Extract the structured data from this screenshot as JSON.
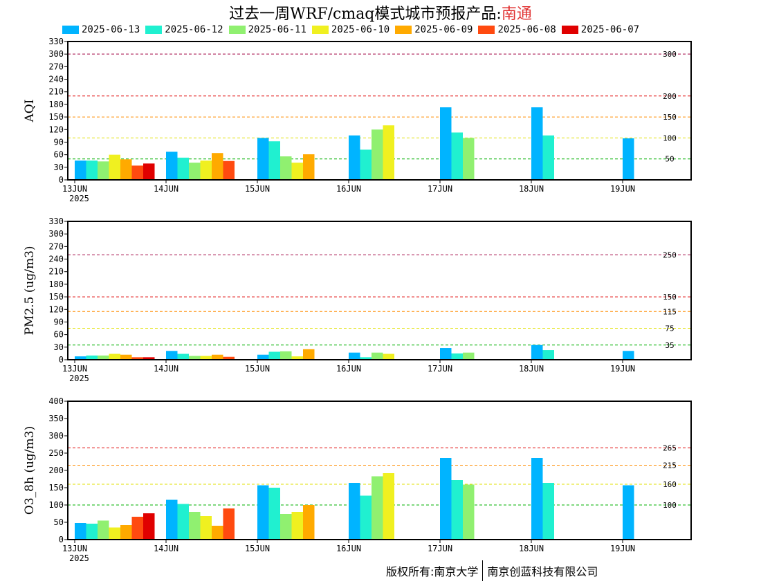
{
  "title": {
    "prefix": "过去一周WRF/cmaq模式城市预报产品:",
    "city": "南通"
  },
  "legend": [
    {
      "label": "2025-06-13",
      "color": "#00b4ff"
    },
    {
      "label": "2025-06-12",
      "color": "#20f0d0"
    },
    {
      "label": "2025-06-11",
      "color": "#90f070"
    },
    {
      "label": "2025-06-10",
      "color": "#f0f020"
    },
    {
      "label": "2025-06-09",
      "color": "#ffaa00"
    },
    {
      "label": "2025-06-08",
      "color": "#ff4a10"
    },
    {
      "label": "2025-06-07",
      "color": "#e00000"
    }
  ],
  "copyright": {
    "left": "版权所有:南京大学",
    "right": "南京创蓝科技有限公司"
  },
  "chart_data": [
    {
      "type": "bar",
      "ylabel": "AQI",
      "ylim": [
        0,
        330
      ],
      "yticks": [
        0,
        30,
        60,
        90,
        120,
        150,
        180,
        210,
        240,
        270,
        300,
        330
      ],
      "categories": [
        "13JUN",
        "14JUN",
        "15JUN",
        "16JUN",
        "17JUN",
        "18JUN",
        "19JUN"
      ],
      "year_label": "2025",
      "thresholds": [
        {
          "value": 50,
          "label": "50",
          "color": "#00b000"
        },
        {
          "value": 100,
          "label": "100",
          "color": "#e0e000"
        },
        {
          "value": 150,
          "label": "150",
          "color": "#ff8c00"
        },
        {
          "value": 200,
          "label": "200",
          "color": "#e00000"
        },
        {
          "value": 300,
          "label": "300",
          "color": "#a00040"
        }
      ],
      "series": [
        {
          "name": "2025-06-13",
          "values": [
            46,
            67,
            100,
            106,
            173,
            173,
            99
          ]
        },
        {
          "name": "2025-06-12",
          "values": [
            46,
            53,
            92,
            72,
            113,
            106,
            null
          ]
        },
        {
          "name": "2025-06-11",
          "values": [
            44,
            41,
            56,
            120,
            100,
            null,
            null
          ]
        },
        {
          "name": "2025-06-10",
          "values": [
            60,
            46,
            41,
            130,
            null,
            null,
            null
          ]
        },
        {
          "name": "2025-06-09",
          "values": [
            49,
            64,
            61,
            null,
            null,
            null,
            null
          ]
        },
        {
          "name": "2025-06-08",
          "values": [
            34,
            45,
            null,
            null,
            null,
            null,
            null
          ]
        },
        {
          "name": "2025-06-07",
          "values": [
            39,
            null,
            null,
            null,
            null,
            null,
            null
          ]
        }
      ]
    },
    {
      "type": "bar",
      "ylabel": "PM2.5 (ug/m3)",
      "ylim": [
        0,
        330
      ],
      "yticks": [
        0,
        30,
        60,
        90,
        120,
        150,
        180,
        210,
        240,
        270,
        300,
        330
      ],
      "categories": [
        "13JUN",
        "14JUN",
        "15JUN",
        "16JUN",
        "17JUN",
        "18JUN",
        "19JUN"
      ],
      "year_label": "2025",
      "thresholds": [
        {
          "value": 35,
          "label": "35",
          "color": "#00b000"
        },
        {
          "value": 75,
          "label": "75",
          "color": "#e0e000"
        },
        {
          "value": 115,
          "label": "115",
          "color": "#ff8c00"
        },
        {
          "value": 150,
          "label": "150",
          "color": "#e00000"
        },
        {
          "value": 250,
          "label": "250",
          "color": "#a00040"
        }
      ],
      "series": [
        {
          "name": "2025-06-13",
          "values": [
            8,
            21,
            12,
            17,
            28,
            35,
            21
          ]
        },
        {
          "name": "2025-06-12",
          "values": [
            10,
            14,
            19,
            6,
            15,
            23,
            null
          ]
        },
        {
          "name": "2025-06-11",
          "values": [
            10,
            9,
            20,
            17,
            17,
            null,
            null
          ]
        },
        {
          "name": "2025-06-10",
          "values": [
            14,
            9,
            8,
            14,
            null,
            null,
            null
          ]
        },
        {
          "name": "2025-06-09",
          "values": [
            12,
            12,
            25,
            null,
            null,
            null,
            null
          ]
        },
        {
          "name": "2025-06-08",
          "values": [
            6,
            7,
            null,
            null,
            null,
            null,
            null
          ]
        },
        {
          "name": "2025-06-07",
          "values": [
            6,
            null,
            null,
            null,
            null,
            null,
            null
          ]
        }
      ]
    },
    {
      "type": "bar",
      "ylabel": "O3_8h (ug/m3)",
      "ylim": [
        0,
        400
      ],
      "yticks": [
        0,
        50,
        100,
        150,
        200,
        250,
        300,
        350,
        400
      ],
      "categories": [
        "13JUN",
        "14JUN",
        "15JUN",
        "16JUN",
        "17JUN",
        "18JUN",
        "19JUN"
      ],
      "year_label": "2025",
      "thresholds": [
        {
          "value": 100,
          "label": "100",
          "color": "#00b000"
        },
        {
          "value": 160,
          "label": "160",
          "color": "#e0e000"
        },
        {
          "value": 215,
          "label": "215",
          "color": "#ff8c00"
        },
        {
          "value": 265,
          "label": "265",
          "color": "#e00000"
        }
      ],
      "series": [
        {
          "name": "2025-06-13",
          "values": [
            48,
            115,
            157,
            164,
            236,
            236,
            157
          ]
        },
        {
          "name": "2025-06-12",
          "values": [
            46,
            103,
            150,
            127,
            172,
            164,
            null
          ]
        },
        {
          "name": "2025-06-11",
          "values": [
            55,
            80,
            74,
            183,
            159,
            null,
            null
          ]
        },
        {
          "name": "2025-06-10",
          "values": [
            35,
            68,
            80,
            192,
            null,
            null,
            null
          ]
        },
        {
          "name": "2025-06-09",
          "values": [
            42,
            40,
            100,
            null,
            null,
            null,
            null
          ]
        },
        {
          "name": "2025-06-08",
          "values": [
            66,
            90,
            null,
            null,
            null,
            null,
            null
          ]
        },
        {
          "name": "2025-06-07",
          "values": [
            76,
            null,
            null,
            null,
            null,
            null,
            null
          ]
        }
      ]
    }
  ]
}
